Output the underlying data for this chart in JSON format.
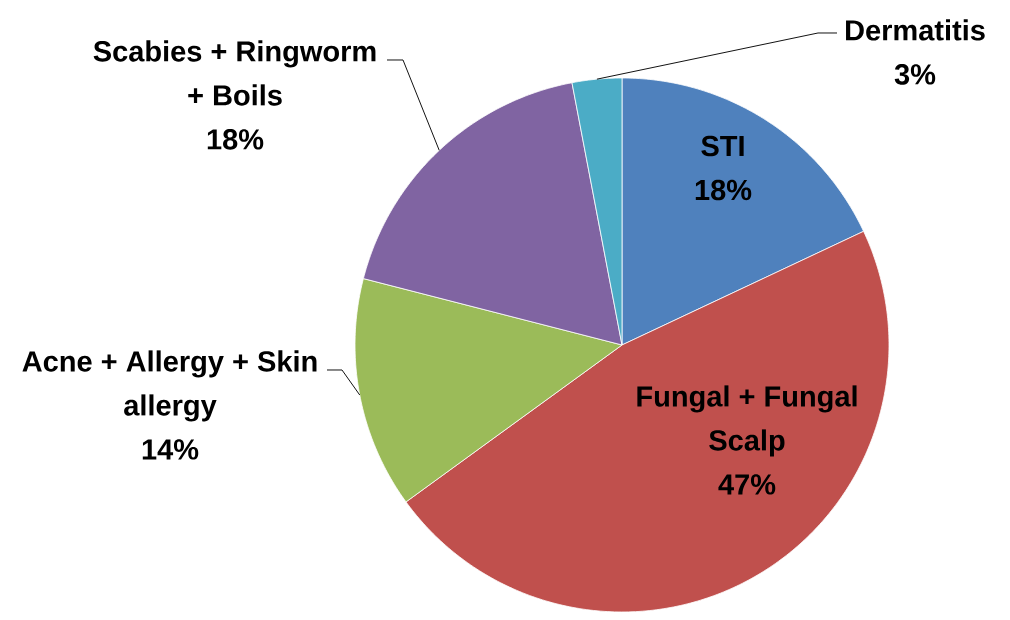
{
  "chart_data": {
    "type": "pie",
    "categories": [
      "STI",
      "Fungal + Fungal Scalp",
      "Acne + Allergy + Skin allergy",
      "Scabies + Ringworm + Boils",
      "Dermatitis"
    ],
    "values": [
      18,
      47,
      14,
      18,
      3
    ],
    "colors": [
      "#4f81bd",
      "#c0504d",
      "#9bbb59",
      "#8064a2",
      "#4bacc6"
    ],
    "value_labels": [
      "18%",
      "47%",
      "14%",
      "18%",
      "3%"
    ]
  }
}
